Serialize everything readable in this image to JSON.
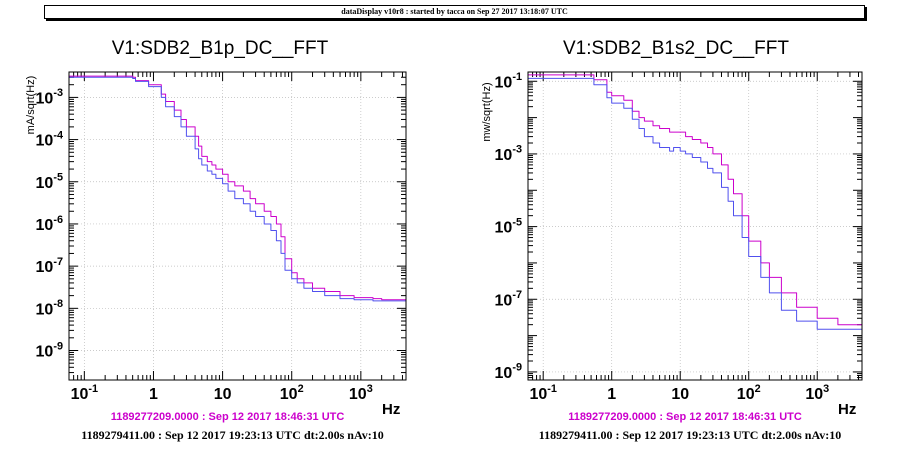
{
  "banner": "dataDisplay v10r8 : started by tacca on Sep 27 2017 13:18:07 UTC",
  "colors": {
    "ref": "#cc00cc",
    "cur": "#5050ee",
    "frame": "#000000",
    "grid": "#bbbbbb"
  },
  "chart_data": [
    {
      "type": "line",
      "title": "V1:SDB2_B1p_DC__FFT",
      "xlabel": "Hz",
      "ylabel": "mA/sqrt(Hz)",
      "xscale": "log",
      "yscale": "log",
      "xlim": [
        0.06,
        4500
      ],
      "ylim": [
        2e-10,
        0.004
      ],
      "grid": true,
      "x_ticks": [
        {
          "v": 0.1,
          "label": "10^-1"
        },
        {
          "v": 1,
          "label": "1"
        },
        {
          "v": 10,
          "label": "10"
        },
        {
          "v": 100,
          "label": "10^2"
        },
        {
          "v": 1000,
          "label": "10^3"
        }
      ],
      "y_ticks": [
        {
          "v": 1e-09,
          "label": "10^-9"
        },
        {
          "v": 1e-08,
          "label": "10^-8"
        },
        {
          "v": 1e-07,
          "label": "10^-7"
        },
        {
          "v": 1e-06,
          "label": "10^-6"
        },
        {
          "v": 1e-05,
          "label": "10^-5"
        },
        {
          "v": 0.0001,
          "label": "10^-4"
        },
        {
          "v": 0.001,
          "label": "10^-3"
        }
      ],
      "ref_label": "1189277209.0000 : Sep 12 2017 18:46:31 UTC",
      "cur_label": "1189279411.00 : Sep 12 2017 19:23:13 UTC dt:2.00s nAv:10",
      "series": [
        {
          "role": "reference",
          "color": "#cc00cc",
          "x": [
            0.06,
            0.2,
            0.5,
            0.55,
            0.75,
            0.85,
            1.0,
            1.3,
            1.5,
            2.0,
            2.5,
            3.0,
            4.0,
            4.5,
            5.0,
            6.0,
            7.0,
            8.0,
            10,
            12,
            15,
            20,
            25,
            30,
            40,
            50,
            60,
            70,
            80,
            100,
            120,
            150,
            200,
            300,
            500,
            800,
            1000,
            1500,
            2000,
            3000,
            4000,
            4500
          ],
          "y": [
            0.0032,
            0.0032,
            0.003,
            0.0025,
            0.0025,
            0.002,
            0.002,
            0.0012,
            0.0008,
            0.0005,
            0.0003,
            0.0002,
            0.00012,
            7e-05,
            4e-05,
            3e-05,
            2.5e-05,
            2e-05,
            1.5e-05,
            1e-05,
            8e-06,
            6e-06,
            4e-06,
            3e-06,
            2e-06,
            1.5e-06,
            1e-06,
            5e-07,
            1.5e-07,
            7e-08,
            5e-08,
            4e-08,
            3e-08,
            2.5e-08,
            2e-08,
            1.8e-08,
            1.8e-08,
            1.7e-08,
            1.6e-08,
            1.6e-08,
            1.6e-08,
            1.6e-08
          ]
        },
        {
          "role": "current",
          "color": "#5050ee",
          "x": [
            0.06,
            0.2,
            0.5,
            0.55,
            0.75,
            0.85,
            1.0,
            1.3,
            1.5,
            2.0,
            2.5,
            3.0,
            4.0,
            4.5,
            5.0,
            6.0,
            7.0,
            8.0,
            10,
            12,
            15,
            20,
            25,
            30,
            40,
            50,
            60,
            70,
            80,
            100,
            120,
            150,
            200,
            300,
            500,
            800,
            1000,
            1500,
            2000,
            3000,
            4000,
            4500
          ],
          "y": [
            0.003,
            0.003,
            0.0028,
            0.0024,
            0.0024,
            0.0018,
            0.0018,
            0.001,
            0.0006,
            0.00035,
            0.0002,
            0.00012,
            6e-05,
            3.5e-05,
            2.5e-05,
            1.8e-05,
            1.5e-05,
            1.2e-05,
            9e-06,
            6e-06,
            4e-06,
            3e-06,
            2e-06,
            1.5e-06,
            1e-06,
            7e-07,
            4e-07,
            2e-07,
            8e-08,
            5e-08,
            4e-08,
            3e-08,
            2.5e-08,
            2e-08,
            1.7e-08,
            1.6e-08,
            1.6e-08,
            1.5e-08,
            1.5e-08,
            1.5e-08,
            1.5e-08,
            1.5e-08
          ]
        }
      ]
    },
    {
      "type": "line",
      "title": "V1:SDB2_B1s2_DC__FFT",
      "xlabel": "Hz",
      "ylabel": "mw/sqrt(Hz)",
      "xscale": "log",
      "yscale": "log",
      "xlim": [
        0.06,
        4500
      ],
      "ylim": [
        6e-10,
        0.18
      ],
      "grid": true,
      "x_ticks": [
        {
          "v": 0.1,
          "label": "10^-1"
        },
        {
          "v": 1,
          "label": "1"
        },
        {
          "v": 10,
          "label": "10"
        },
        {
          "v": 100,
          "label": "10^2"
        },
        {
          "v": 1000,
          "label": "10^3"
        }
      ],
      "y_ticks": [
        {
          "v": 1e-09,
          "label": "10^-9"
        },
        {
          "v": 1e-07,
          "label": "10^-7"
        },
        {
          "v": 1e-05,
          "label": "10^-5"
        },
        {
          "v": 0.001,
          "label": "10^-3"
        },
        {
          "v": 0.1,
          "label": "10^-1"
        }
      ],
      "ref_label": "1189277209.0000 : Sep 12 2017 18:46:31 UTC",
      "cur_label": "1189279411.00 : Sep 12 2017 19:23:13 UTC dt:2.00s nAv:10",
      "series": [
        {
          "role": "reference",
          "color": "#cc00cc",
          "x": [
            0.06,
            0.5,
            0.55,
            0.75,
            0.85,
            1.0,
            1.3,
            1.5,
            2.0,
            2.5,
            3.0,
            4.0,
            5.0,
            7.0,
            8.0,
            10,
            12,
            15,
            20,
            25,
            30,
            40,
            50,
            60,
            80,
            100,
            150,
            200,
            300,
            500,
            1000,
            2000,
            4000,
            4500
          ],
          "y": [
            0.15,
            0.15,
            0.11,
            0.11,
            0.05,
            0.04,
            0.04,
            0.03,
            0.015,
            0.01,
            0.008,
            0.006,
            0.005,
            0.004,
            0.004,
            0.004,
            0.003,
            0.0025,
            0.002,
            0.0015,
            0.001,
            0.0005,
            0.0002,
            8e-05,
            2e-05,
            4e-06,
            1e-06,
            4e-07,
            1.5e-07,
            6e-08,
            3e-08,
            2e-08,
            2e-08,
            2e-08
          ]
        },
        {
          "role": "current",
          "color": "#5050ee",
          "x": [
            0.06,
            0.5,
            0.55,
            0.75,
            0.85,
            1.0,
            1.3,
            1.5,
            2.0,
            2.5,
            3.0,
            4.0,
            5.0,
            7.0,
            8.0,
            10,
            12,
            15,
            20,
            25,
            30,
            40,
            50,
            60,
            80,
            100,
            150,
            200,
            300,
            500,
            1000,
            2000,
            4000,
            4500
          ],
          "y": [
            0.12,
            0.12,
            0.08,
            0.08,
            0.035,
            0.025,
            0.025,
            0.018,
            0.009,
            0.005,
            0.003,
            0.002,
            0.0015,
            0.0012,
            0.0015,
            0.0012,
            0.001,
            0.0008,
            0.0006,
            0.0004,
            0.0003,
            0.00012,
            5e-05,
            2e-05,
            5e-06,
            1.5e-06,
            4e-07,
            1.5e-07,
            5e-08,
            2.5e-08,
            1.5e-08,
            1.5e-08,
            1.5e-08,
            1.5e-08
          ]
        }
      ]
    }
  ]
}
